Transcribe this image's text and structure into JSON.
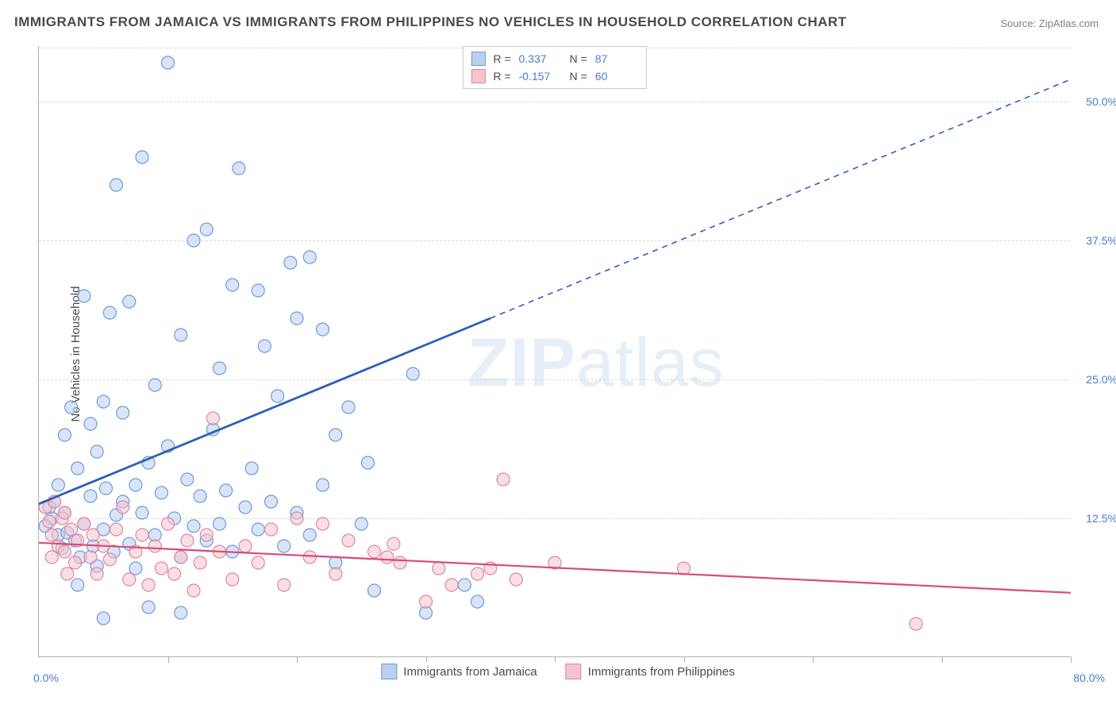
{
  "title": "IMMIGRANTS FROM JAMAICA VS IMMIGRANTS FROM PHILIPPINES NO VEHICLES IN HOUSEHOLD CORRELATION CHART",
  "source": "Source: ZipAtlas.com",
  "ylabel": "No Vehicles in Household",
  "watermark_a": "ZIP",
  "watermark_b": "atlas",
  "chart": {
    "type": "scatter",
    "xlim": [
      0,
      80
    ],
    "ylim": [
      0,
      55
    ],
    "grid_dash": true,
    "grid_color": "#d8d8d8",
    "axis_color": "#b0b0b0",
    "background": "#ffffff",
    "y_ticks": [
      12.5,
      25.0,
      37.5,
      50.0
    ],
    "y_tick_labels": [
      "12.5%",
      "25.0%",
      "37.5%",
      "50.0%"
    ],
    "y_tick_color": "#4a7bd1",
    "x_tick_positions": [
      0,
      10,
      20,
      30,
      40,
      50,
      60,
      70,
      80
    ],
    "x_origin_label": "0.0%",
    "x_max_label": "80.0%",
    "x_label_color": "#4a7bd1"
  },
  "series": {
    "jamaica": {
      "label": "Immigrants from Jamaica",
      "R": "0.337",
      "N": "87",
      "fill": "#b9d0ee",
      "stroke": "#6f9adc",
      "trend_color": "#2e5fb5",
      "trend_solid": {
        "x1": 0,
        "y1": 13.8,
        "x2": 35,
        "y2": 30.5
      },
      "trend_dash": {
        "x1": 35,
        "y1": 30.5,
        "x2": 80,
        "y2": 52.0
      },
      "marker_r": 8,
      "points": [
        [
          1.0,
          12.5
        ],
        [
          1.2,
          14.0
        ],
        [
          1.5,
          11.0
        ],
        [
          1.5,
          15.5
        ],
        [
          1.8,
          9.8
        ],
        [
          2.0,
          13.0
        ],
        [
          2.0,
          20.0
        ],
        [
          2.2,
          11.2
        ],
        [
          0.8,
          13.5
        ],
        [
          0.5,
          11.8
        ],
        [
          2.5,
          22.5
        ],
        [
          2.8,
          10.5
        ],
        [
          3.0,
          17.0
        ],
        [
          3.0,
          6.5
        ],
        [
          3.2,
          9.0
        ],
        [
          3.5,
          12.0
        ],
        [
          3.5,
          32.5
        ],
        [
          4.0,
          14.5
        ],
        [
          4.0,
          21.0
        ],
        [
          4.2,
          10.0
        ],
        [
          4.5,
          18.5
        ],
        [
          4.5,
          8.2
        ],
        [
          5.0,
          11.5
        ],
        [
          5.0,
          23.0
        ],
        [
          5.2,
          15.2
        ],
        [
          5.5,
          31.0
        ],
        [
          5.8,
          9.5
        ],
        [
          6.0,
          12.8
        ],
        [
          6.0,
          42.5
        ],
        [
          6.5,
          14.0
        ],
        [
          6.5,
          22.0
        ],
        [
          7.0,
          10.2
        ],
        [
          7.0,
          32.0
        ],
        [
          7.5,
          15.5
        ],
        [
          7.5,
          8.0
        ],
        [
          8.0,
          13.0
        ],
        [
          8.0,
          45.0
        ],
        [
          8.5,
          17.5
        ],
        [
          9.0,
          11.0
        ],
        [
          9.0,
          24.5
        ],
        [
          9.5,
          14.8
        ],
        [
          10.0,
          19.0
        ],
        [
          10.0,
          53.5
        ],
        [
          10.5,
          12.5
        ],
        [
          11.0,
          29.0
        ],
        [
          11.0,
          9.0
        ],
        [
          11.5,
          16.0
        ],
        [
          12.0,
          11.8
        ],
        [
          12.0,
          37.5
        ],
        [
          12.5,
          14.5
        ],
        [
          13.0,
          38.5
        ],
        [
          13.0,
          10.5
        ],
        [
          13.5,
          20.5
        ],
        [
          14.0,
          26.0
        ],
        [
          14.0,
          12.0
        ],
        [
          14.5,
          15.0
        ],
        [
          15.0,
          33.5
        ],
        [
          15.0,
          9.5
        ],
        [
          15.5,
          44.0
        ],
        [
          16.0,
          13.5
        ],
        [
          16.5,
          17.0
        ],
        [
          17.0,
          11.5
        ],
        [
          17.0,
          33.0
        ],
        [
          17.5,
          28.0
        ],
        [
          18.0,
          14.0
        ],
        [
          18.5,
          23.5
        ],
        [
          19.0,
          10.0
        ],
        [
          19.5,
          35.5
        ],
        [
          20.0,
          13.0
        ],
        [
          20.0,
          30.5
        ],
        [
          21.0,
          11.0
        ],
        [
          21.0,
          36.0
        ],
        [
          22.0,
          15.5
        ],
        [
          22.0,
          29.5
        ],
        [
          23.0,
          8.5
        ],
        [
          23.0,
          20.0
        ],
        [
          24.0,
          22.5
        ],
        [
          25.0,
          12.0
        ],
        [
          25.5,
          17.5
        ],
        [
          26.0,
          6.0
        ],
        [
          29.0,
          25.5
        ],
        [
          30.0,
          4.0
        ],
        [
          33.0,
          6.5
        ],
        [
          34.0,
          5.0
        ],
        [
          5.0,
          3.5
        ],
        [
          8.5,
          4.5
        ],
        [
          11.0,
          4.0
        ]
      ]
    },
    "philippines": {
      "label": "Immigrants from Philippines",
      "R": "-0.157",
      "N": "60",
      "fill": "#f3c4d0",
      "stroke": "#e086a0",
      "trend_color": "#d94b76",
      "trend_solid": {
        "x1": 0,
        "y1": 10.3,
        "x2": 80,
        "y2": 5.8
      },
      "marker_r": 8,
      "points": [
        [
          0.5,
          13.5
        ],
        [
          0.8,
          12.2
        ],
        [
          1.0,
          11.0
        ],
        [
          1.2,
          14.0
        ],
        [
          1.5,
          10.0
        ],
        [
          1.8,
          12.5
        ],
        [
          2.0,
          9.5
        ],
        [
          2.0,
          13.0
        ],
        [
          2.5,
          11.5
        ],
        [
          2.8,
          8.5
        ],
        [
          3.0,
          10.5
        ],
        [
          3.5,
          12.0
        ],
        [
          4.0,
          9.0
        ],
        [
          4.2,
          11.0
        ],
        [
          4.5,
          7.5
        ],
        [
          5.0,
          10.0
        ],
        [
          5.5,
          8.8
        ],
        [
          6.0,
          11.5
        ],
        [
          6.5,
          13.5
        ],
        [
          7.0,
          7.0
        ],
        [
          7.5,
          9.5
        ],
        [
          8.0,
          11.0
        ],
        [
          8.5,
          6.5
        ],
        [
          9.0,
          10.0
        ],
        [
          9.5,
          8.0
        ],
        [
          10.0,
          12.0
        ],
        [
          10.5,
          7.5
        ],
        [
          11.0,
          9.0
        ],
        [
          11.5,
          10.5
        ],
        [
          12.0,
          6.0
        ],
        [
          12.5,
          8.5
        ],
        [
          13.0,
          11.0
        ],
        [
          13.5,
          21.5
        ],
        [
          14.0,
          9.5
        ],
        [
          15.0,
          7.0
        ],
        [
          16.0,
          10.0
        ],
        [
          17.0,
          8.5
        ],
        [
          18.0,
          11.5
        ],
        [
          19.0,
          6.5
        ],
        [
          20.0,
          12.5
        ],
        [
          21.0,
          9.0
        ],
        [
          22.0,
          12.0
        ],
        [
          23.0,
          7.5
        ],
        [
          24.0,
          10.5
        ],
        [
          26.0,
          9.5
        ],
        [
          27.0,
          9.0
        ],
        [
          27.5,
          10.2
        ],
        [
          28.0,
          8.5
        ],
        [
          30.0,
          5.0
        ],
        [
          31.0,
          8.0
        ],
        [
          32.0,
          6.5
        ],
        [
          34.0,
          7.5
        ],
        [
          35.0,
          8.0
        ],
        [
          36.0,
          16.0
        ],
        [
          37.0,
          7.0
        ],
        [
          40.0,
          8.5
        ],
        [
          50.0,
          8.0
        ],
        [
          68.0,
          3.0
        ],
        [
          1.0,
          9.0
        ],
        [
          2.2,
          7.5
        ]
      ]
    }
  },
  "stats_box": {
    "rows": [
      {
        "swatch_fill": "#b9d0ee",
        "swatch_stroke": "#6f9adc",
        "r_label": "R =",
        "r_val": "0.337",
        "n_label": "N =",
        "n_val": "87"
      },
      {
        "swatch_fill": "#f3c4d0",
        "swatch_stroke": "#e086a0",
        "r_label": "R =",
        "r_val": "-0.157",
        "n_label": "N =",
        "n_val": "60"
      }
    ]
  },
  "bottom_legend": [
    {
      "swatch_fill": "#b9d0ee",
      "swatch_stroke": "#6f9adc",
      "label": "Immigrants from Jamaica"
    },
    {
      "swatch_fill": "#f3c4d0",
      "swatch_stroke": "#e086a0",
      "label": "Immigrants from Philippines"
    }
  ]
}
